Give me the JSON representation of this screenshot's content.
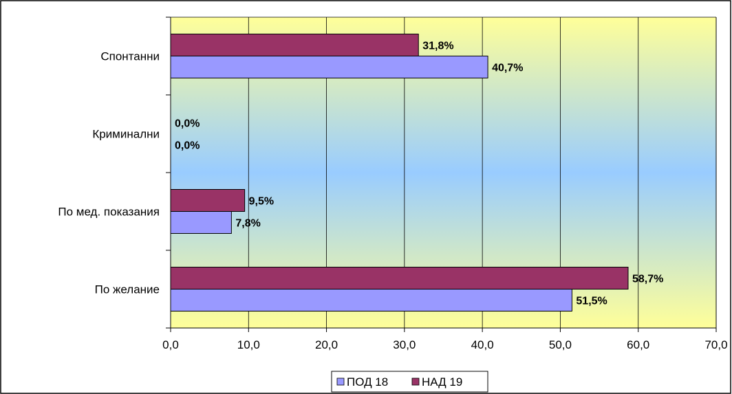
{
  "chart_data": {
    "type": "bar",
    "orientation": "horizontal",
    "categories": [
      "Спонтанни",
      "Криминални",
      "По мед. показания",
      "По желание"
    ],
    "series": [
      {
        "name": "НАД 19",
        "color": "#993366",
        "values": [
          31.8,
          0.0,
          9.5,
          58.7
        ],
        "labels": [
          "31,8%",
          "0,0%",
          "9,5%",
          "58,7%"
        ]
      },
      {
        "name": "ПОД 18",
        "color": "#9999FF",
        "values": [
          40.7,
          0.0,
          7.8,
          51.5
        ],
        "labels": [
          "40,7%",
          "0,0%",
          "7,8%",
          "51,5%"
        ]
      }
    ],
    "xlim": [
      0,
      70
    ],
    "xticks": [
      "0,0",
      "10,0",
      "20,0",
      "30,0",
      "40,0",
      "50,0",
      "60,0",
      "70,0"
    ],
    "grid": "vertical",
    "legend": {
      "position": "bottom",
      "items": [
        {
          "name": "ПОД 18",
          "color": "#9999FF"
        },
        {
          "name": "НАД 19",
          "color": "#993366"
        }
      ]
    },
    "plot_background": "gradient yellow-to-blue",
    "plot_background_colors": [
      "#FFFF99",
      "#99CCFF"
    ]
  }
}
